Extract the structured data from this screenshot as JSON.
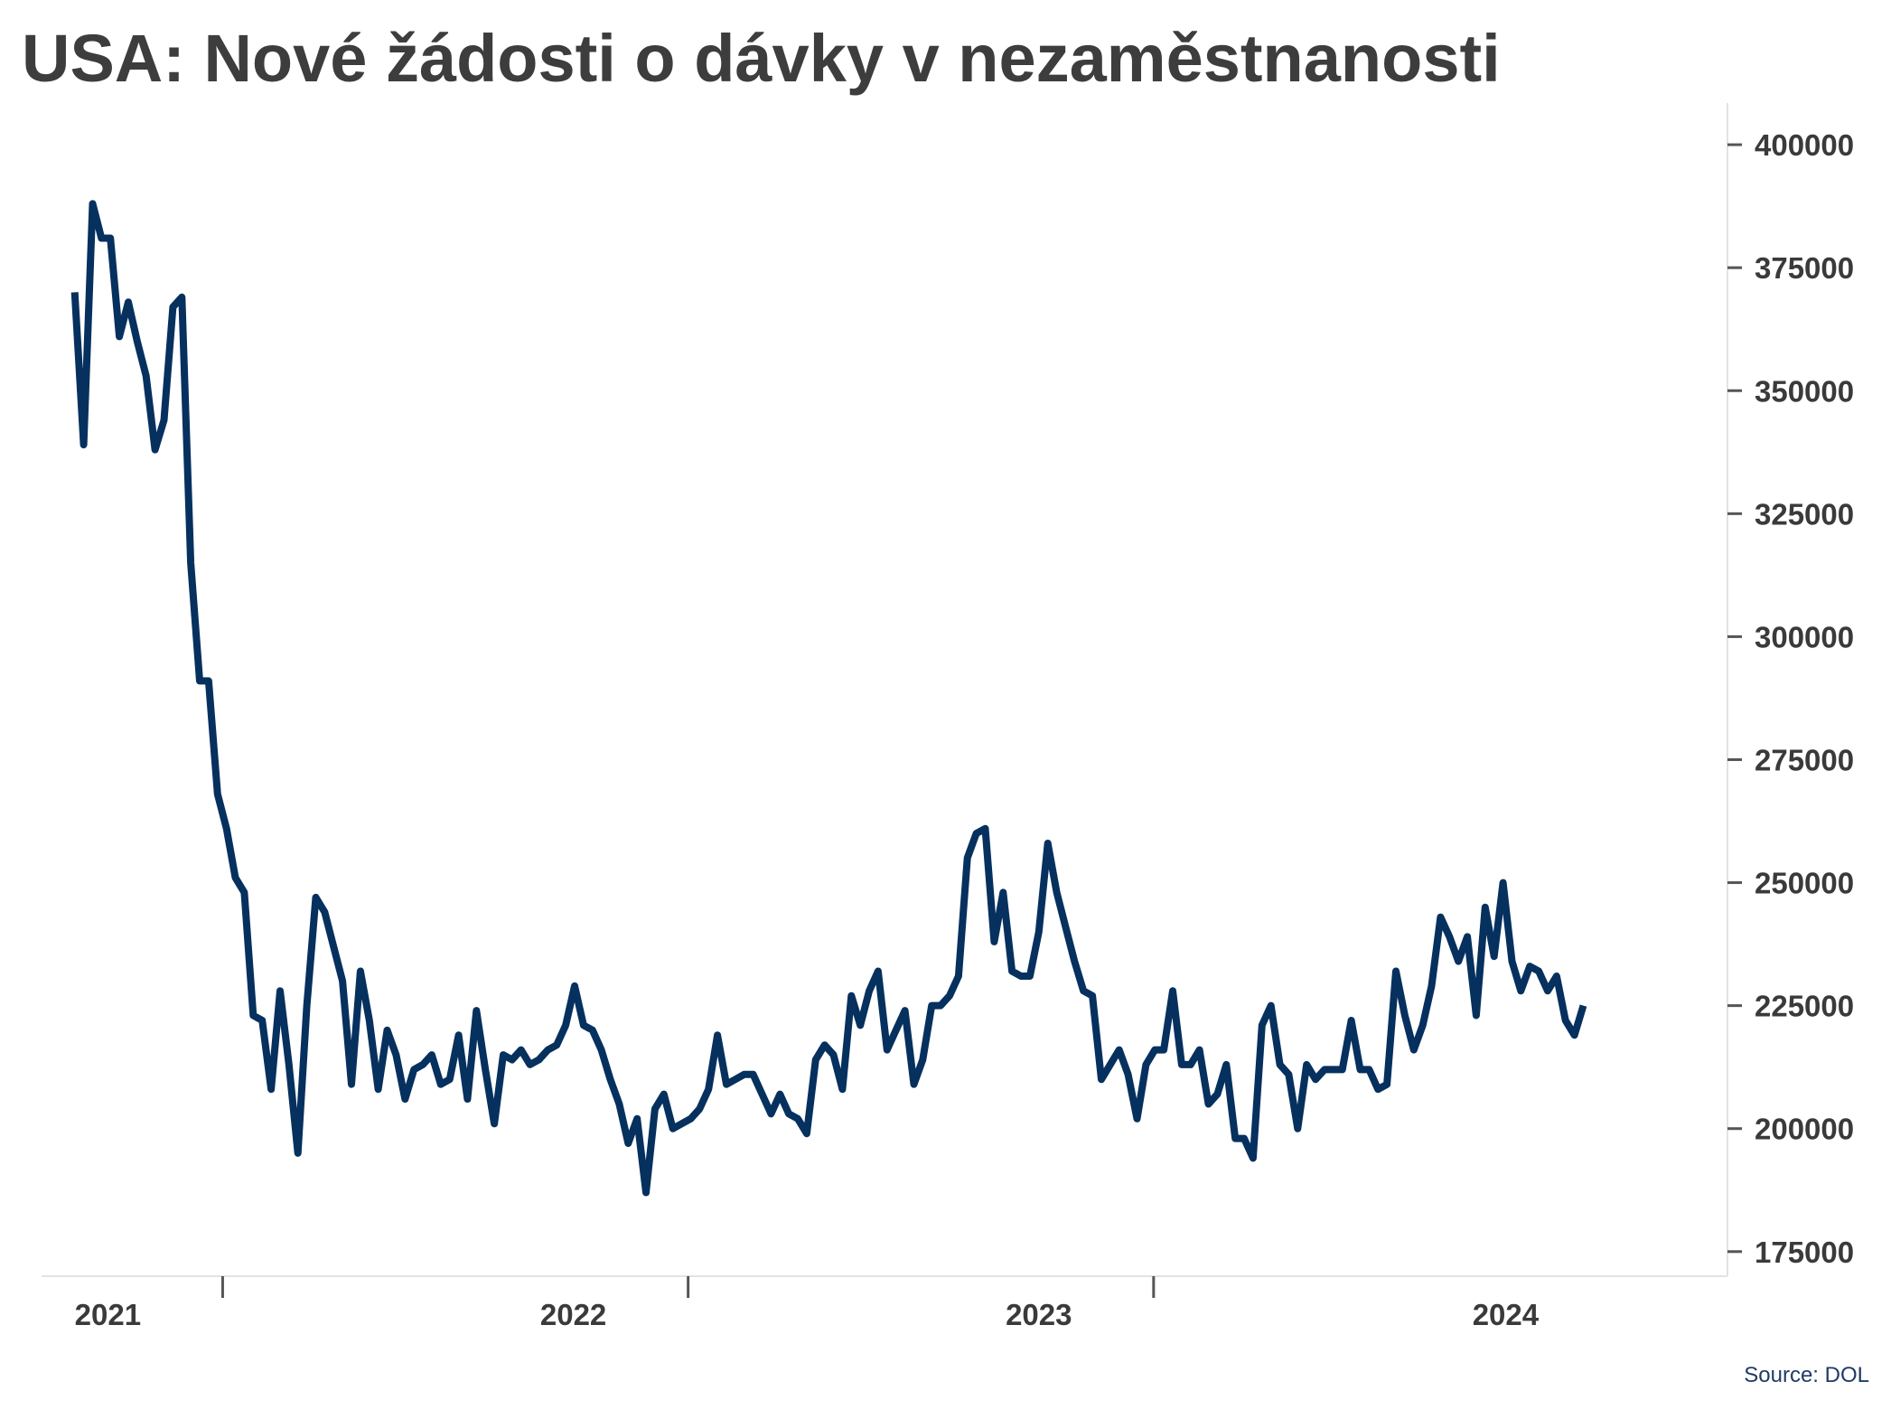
{
  "title": "USA: Nové žádosti o dávky v nezaměstnanosti",
  "source": "Source: DOL",
  "colors": {
    "line": "#06305e",
    "text": "#3a3a3a",
    "axis": "#e3e3e3",
    "tick": "#555555",
    "source": "#1f3b66"
  },
  "chart_data": {
    "type": "line",
    "title": "USA: Nové žádosti o dávky v nezaměstnanosti",
    "xlabel": "",
    "ylabel": "",
    "x_start": "2021-03-06",
    "x_step_days": 7,
    "x_range": [
      "2021-02-08",
      "2024-09-22"
    ],
    "x_ticks": [
      "2021-06-30",
      "2022-06-30",
      "2023-06-30"
    ],
    "x_tick_labels": [
      {
        "label": "2021",
        "date": "2021-04-01"
      },
      {
        "label": "2022",
        "date": "2022-04-01"
      },
      {
        "label": "2023",
        "date": "2023-04-01"
      },
      {
        "label": "2024",
        "date": "2024-04-01"
      }
    ],
    "y_axis_position": "right",
    "ylim": [
      170000,
      407000
    ],
    "yticks": [
      175000,
      200000,
      225000,
      250000,
      275000,
      300000,
      325000,
      350000,
      375000,
      400000
    ],
    "grid": false,
    "legend": "none",
    "series": [
      {
        "values": [
          370000,
          339000,
          388000,
          381000,
          381000,
          361000,
          368000,
          360000,
          353000,
          338000,
          344000,
          367000,
          369000,
          315000,
          291000,
          291000,
          268000,
          261000,
          251000,
          248000,
          223000,
          222000,
          208000,
          228000,
          213000,
          195000,
          225000,
          247000,
          244000,
          237000,
          230000,
          209000,
          232000,
          222000,
          208000,
          220000,
          215000,
          206000,
          212000,
          213000,
          215000,
          209000,
          210000,
          219000,
          206000,
          224000,
          212000,
          201000,
          215000,
          214000,
          216000,
          213000,
          214000,
          216000,
          217000,
          221000,
          229000,
          221000,
          220000,
          216000,
          210000,
          205000,
          197000,
          202000,
          187000,
          204000,
          207000,
          200000,
          201000,
          202000,
          204000,
          208000,
          219000,
          209000,
          210000,
          211000,
          211000,
          207000,
          203000,
          207000,
          203000,
          202000,
          199000,
          214000,
          217000,
          215000,
          208000,
          227000,
          221000,
          228000,
          232000,
          216000,
          220000,
          224000,
          209000,
          214000,
          225000,
          225000,
          227000,
          231000,
          255000,
          260000,
          261000,
          238000,
          248000,
          232000,
          231000,
          231000,
          240000,
          258000,
          248000,
          241000,
          234000,
          228000,
          227000,
          210000,
          213000,
          216000,
          211000,
          202000,
          213000,
          216000,
          216000,
          228000,
          213000,
          213000,
          216000,
          205000,
          207000,
          213000,
          198000,
          198000,
          194000,
          221000,
          225000,
          213000,
          211000,
          200000,
          213000,
          210000,
          212000,
          212000,
          212000,
          222000,
          212000,
          212000,
          208000,
          209000,
          232000,
          223000,
          216000,
          221000,
          229000,
          243000,
          239000,
          234000,
          239000,
          223000,
          245000,
          235000,
          250000,
          234000,
          228000,
          233000,
          232000,
          228000,
          231000,
          222000,
          219000,
          225000
        ]
      }
    ]
  }
}
